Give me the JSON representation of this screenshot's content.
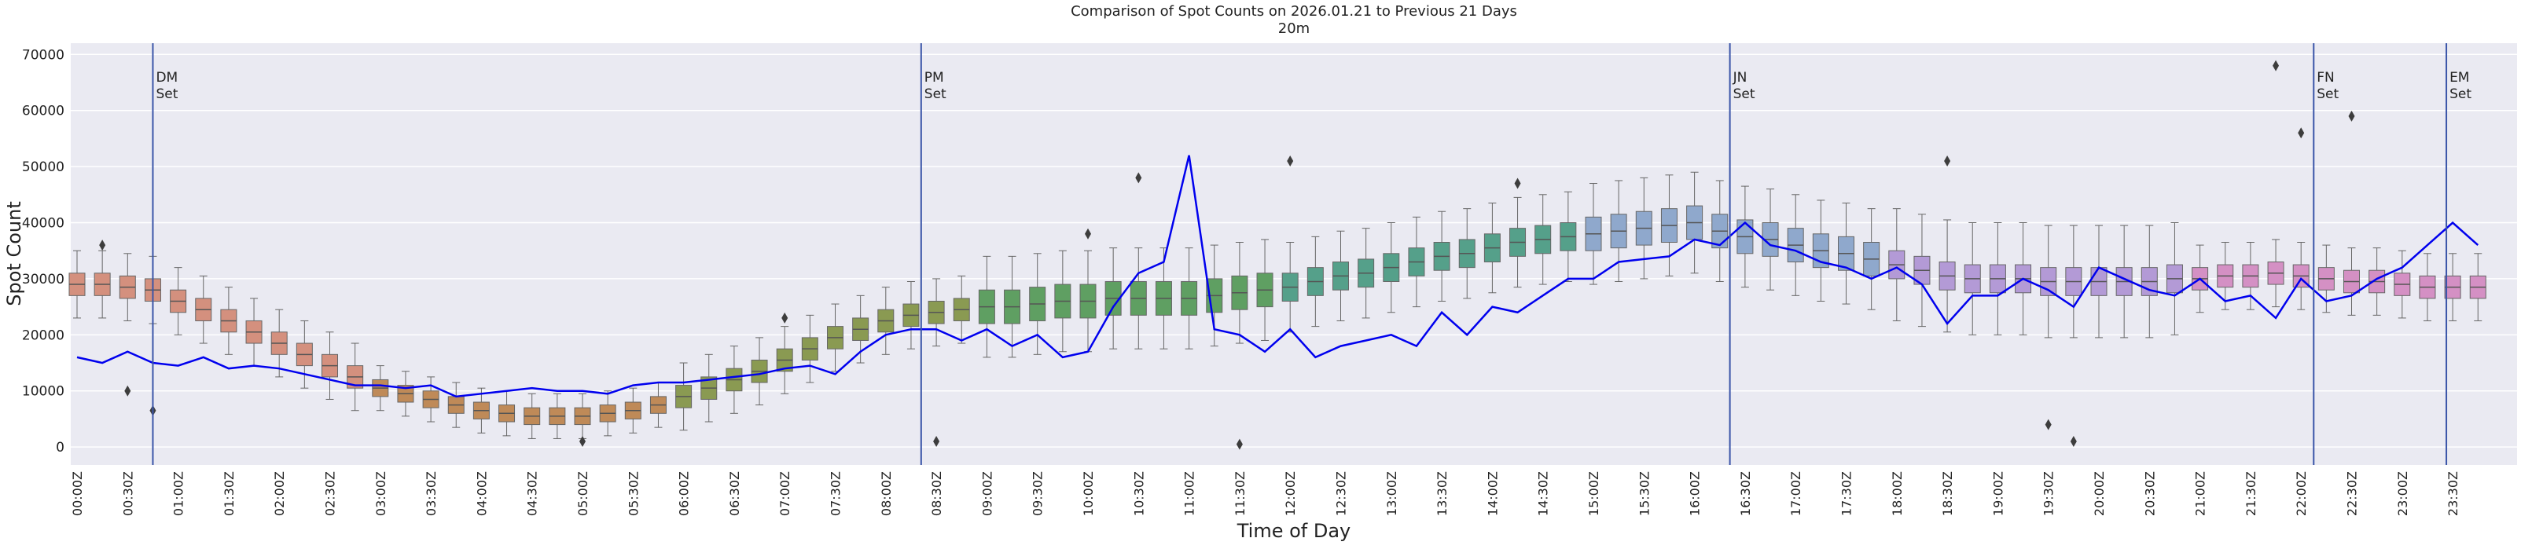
{
  "chart_data": {
    "type": "box",
    "title": "Comparison of Spot Counts on 2026.01.21 to Previous 21 Days",
    "subtitle": "20m",
    "x_label": "Time of Day",
    "y_label": "Spot Count",
    "categories": [
      "00:00Z",
      null,
      "00:30Z",
      null,
      "01:00Z",
      null,
      "01:30Z",
      null,
      "02:00Z",
      null,
      "02:30Z",
      null,
      "03:00Z",
      null,
      "03:30Z",
      null,
      "04:00Z",
      null,
      "04:30Z",
      null,
      "05:00Z",
      null,
      "05:30Z",
      null,
      "06:00Z",
      null,
      "06:30Z",
      null,
      "07:00Z",
      null,
      "07:30Z",
      null,
      "08:00Z",
      null,
      "08:30Z",
      null,
      "09:00Z",
      null,
      "09:30Z",
      null,
      "10:00Z",
      null,
      "10:30Z",
      null,
      "11:00Z",
      null,
      "11:30Z",
      null,
      "12:00Z",
      null,
      "12:30Z",
      null,
      "13:00Z",
      null,
      "13:30Z",
      null,
      "14:00Z",
      null,
      "14:30Z",
      null,
      "15:00Z",
      null,
      "15:30Z",
      null,
      "16:00Z",
      null,
      "16:30Z",
      null,
      "17:00Z",
      null,
      "17:30Z",
      null,
      "18:00Z",
      null,
      "18:30Z",
      null,
      "19:00Z",
      null,
      "19:30Z",
      null,
      "20:00Z",
      null,
      "20:30Z",
      null,
      "21:00Z",
      null,
      "21:30Z",
      null,
      "22:00Z",
      null,
      "22:30Z",
      null,
      "23:00Z",
      null,
      "23:30Z",
      null
    ],
    "whislo": [
      23000,
      23000,
      22500,
      22000,
      20000,
      18500,
      16500,
      14500,
      12500,
      10500,
      8500,
      6500,
      6500,
      5500,
      4500,
      3500,
      2500,
      2000,
      1500,
      1500,
      1500,
      2000,
      2500,
      3500,
      3000,
      4500,
      6000,
      7500,
      9500,
      11500,
      13500,
      15000,
      16500,
      17500,
      18000,
      18500,
      16000,
      16000,
      16500,
      17000,
      17000,
      17500,
      17500,
      17500,
      17500,
      18000,
      18500,
      19000,
      20500,
      21500,
      22500,
      23000,
      24000,
      25000,
      26000,
      26500,
      27500,
      28500,
      29000,
      29500,
      29000,
      29500,
      30000,
      30500,
      31000,
      29500,
      28500,
      28000,
      27000,
      26000,
      25500,
      24500,
      22500,
      21500,
      20500,
      20000,
      20000,
      20000,
      19500,
      19500,
      19500,
      19500,
      19500,
      20000,
      24000,
      24500,
      24500,
      25000,
      24500,
      24000,
      23500,
      23500,
      23000,
      22500,
      22500,
      22500
    ],
    "q1": [
      27000,
      27000,
      26500,
      26000,
      24000,
      22500,
      20500,
      18500,
      16500,
      14500,
      12500,
      10500,
      9000,
      8000,
      7000,
      6000,
      5000,
      4500,
      4000,
      4000,
      4000,
      4500,
      5000,
      6000,
      7000,
      8500,
      10000,
      11500,
      13500,
      15500,
      17500,
      19000,
      20500,
      21500,
      22000,
      22500,
      22000,
      22000,
      22500,
      23000,
      23000,
      23500,
      23500,
      23500,
      23500,
      24000,
      24500,
      25000,
      26000,
      27000,
      28000,
      28500,
      29500,
      30500,
      31500,
      32000,
      33000,
      34000,
      34500,
      35000,
      35000,
      35500,
      36000,
      36500,
      37000,
      35500,
      34500,
      34000,
      33000,
      32000,
      31500,
      30500,
      30000,
      29000,
      28000,
      27500,
      27500,
      27500,
      27000,
      27000,
      27000,
      27000,
      27000,
      27500,
      28000,
      28500,
      28500,
      29000,
      28500,
      28000,
      27500,
      27500,
      27000,
      26500,
      26500,
      26500
    ],
    "median": [
      29000,
      29000,
      28500,
      28000,
      26000,
      24500,
      22500,
      20500,
      18500,
      16500,
      14500,
      12500,
      10500,
      9500,
      8500,
      7500,
      6500,
      6000,
      5500,
      5500,
      5500,
      6000,
      6500,
      7500,
      9000,
      10500,
      12000,
      13500,
      15500,
      17500,
      19500,
      21000,
      22500,
      23500,
      24000,
      24500,
      25000,
      25000,
      25500,
      26000,
      26000,
      26500,
      26500,
      26500,
      26500,
      27000,
      27500,
      28000,
      28500,
      29500,
      30500,
      31000,
      32000,
      33000,
      34000,
      34500,
      35500,
      36500,
      37000,
      37500,
      38000,
      38500,
      39000,
      39500,
      40000,
      38500,
      37500,
      37000,
      36000,
      35000,
      34500,
      33500,
      32500,
      31500,
      30500,
      30000,
      30000,
      30000,
      29500,
      29500,
      29500,
      29500,
      29500,
      30000,
      30000,
      30500,
      30500,
      31000,
      30500,
      30000,
      29500,
      29500,
      29000,
      28500,
      28500,
      28500
    ],
    "q3": [
      31000,
      31000,
      30500,
      30000,
      28000,
      26500,
      24500,
      22500,
      20500,
      18500,
      16500,
      14500,
      12000,
      11000,
      10000,
      9000,
      8000,
      7500,
      7000,
      7000,
      7000,
      7500,
      8000,
      9000,
      11000,
      12500,
      14000,
      15500,
      17500,
      19500,
      21500,
      23000,
      24500,
      25500,
      26000,
      26500,
      28000,
      28000,
      28500,
      29000,
      29000,
      29500,
      29500,
      29500,
      29500,
      30000,
      30500,
      31000,
      31000,
      32000,
      33000,
      33500,
      34500,
      35500,
      36500,
      37000,
      38000,
      39000,
      39500,
      40000,
      41000,
      41500,
      42000,
      42500,
      43000,
      41500,
      40500,
      40000,
      39000,
      38000,
      37500,
      36500,
      35000,
      34000,
      33000,
      32500,
      32500,
      32500,
      32000,
      32000,
      32000,
      32000,
      32000,
      32500,
      32000,
      32500,
      32500,
      33000,
      32500,
      32000,
      31500,
      31500,
      31000,
      30500,
      30500,
      30500
    ],
    "whishi": [
      35000,
      35000,
      34500,
      34000,
      32000,
      30500,
      28500,
      26500,
      24500,
      22500,
      20500,
      18500,
      14500,
      13500,
      12500,
      11500,
      10500,
      10000,
      9500,
      9500,
      9500,
      10000,
      10500,
      11500,
      15000,
      16500,
      18000,
      19500,
      21500,
      23500,
      25500,
      27000,
      28500,
      29500,
      30000,
      30500,
      34000,
      34000,
      34500,
      35000,
      35000,
      35500,
      35500,
      35500,
      35500,
      36000,
      36500,
      37000,
      36500,
      37500,
      38500,
      39000,
      40000,
      41000,
      42000,
      42500,
      43500,
      44500,
      45000,
      45500,
      47000,
      47500,
      48000,
      48500,
      49000,
      47500,
      46500,
      46000,
      45000,
      44000,
      43500,
      42500,
      42500,
      41500,
      40500,
      40000,
      40000,
      40000,
      39500,
      39500,
      39500,
      39500,
      39500,
      40000,
      36000,
      36500,
      36500,
      37000,
      36500,
      36000,
      35500,
      35500,
      35000,
      34500,
      34500,
      34500
    ],
    "box_colors": [
      "#d4907e",
      "#bf8a58",
      "#8a9a52",
      "#5f9f62",
      "#55a08a",
      "#8fa8cc",
      "#b39ad6",
      "#d490c4"
    ],
    "fliers": {
      "x": [
        1,
        2,
        3,
        20,
        28,
        34,
        40,
        42,
        46,
        48,
        57,
        74,
        78,
        79,
        87,
        88,
        90
      ],
      "y": [
        36000,
        10000,
        6500,
        1000,
        23000,
        1000,
        38000,
        48000,
        500,
        51000,
        47000,
        51000,
        4000,
        1000,
        68000,
        56000,
        59000
      ]
    },
    "line": {
      "color": "#0000ee",
      "values": [
        16000,
        15000,
        17000,
        15000,
        14500,
        16000,
        14000,
        14500,
        14000,
        13000,
        12000,
        11000,
        11000,
        10500,
        11000,
        9000,
        9500,
        10000,
        10500,
        10000,
        10000,
        9500,
        11000,
        11500,
        11500,
        12000,
        12500,
        13000,
        14000,
        14500,
        13000,
        17000,
        20000,
        21000,
        21000,
        19000,
        21000,
        18000,
        20000,
        16000,
        17000,
        25000,
        31000,
        33000,
        52000,
        21000,
        20000,
        17000,
        21000,
        16000,
        18000,
        19000,
        20000,
        18000,
        24000,
        20000,
        25000,
        24000,
        27000,
        30000,
        30000,
        33000,
        33500,
        34000,
        37000,
        36000,
        40000,
        36000,
        35000,
        33000,
        32000,
        30000,
        32000,
        29000,
        22000,
        27000,
        27000,
        30000,
        28000,
        25000,
        32000,
        30000,
        28000,
        27000,
        30000,
        26000,
        27000,
        23000,
        30000,
        26000,
        27000,
        30000,
        32000,
        36000,
        40000,
        36000
      ]
    },
    "annotations": [
      {
        "text": [
          "DM",
          "Set"
        ],
        "x": 3.0
      },
      {
        "text": [
          "PM",
          "Set"
        ],
        "x": 33.4
      },
      {
        "text": [
          "JN",
          "Set"
        ],
        "x": 65.4
      },
      {
        "text": [
          "FN",
          "Set"
        ],
        "x": 88.5
      },
      {
        "text": [
          "EM",
          "Set"
        ],
        "x": 93.75
      }
    ],
    "annotation_color": "#3a55a8",
    "ylim": [
      -3200,
      72000
    ],
    "yticks": [
      0,
      10000,
      20000,
      30000,
      40000,
      50000,
      60000,
      70000
    ],
    "grid": true
  }
}
